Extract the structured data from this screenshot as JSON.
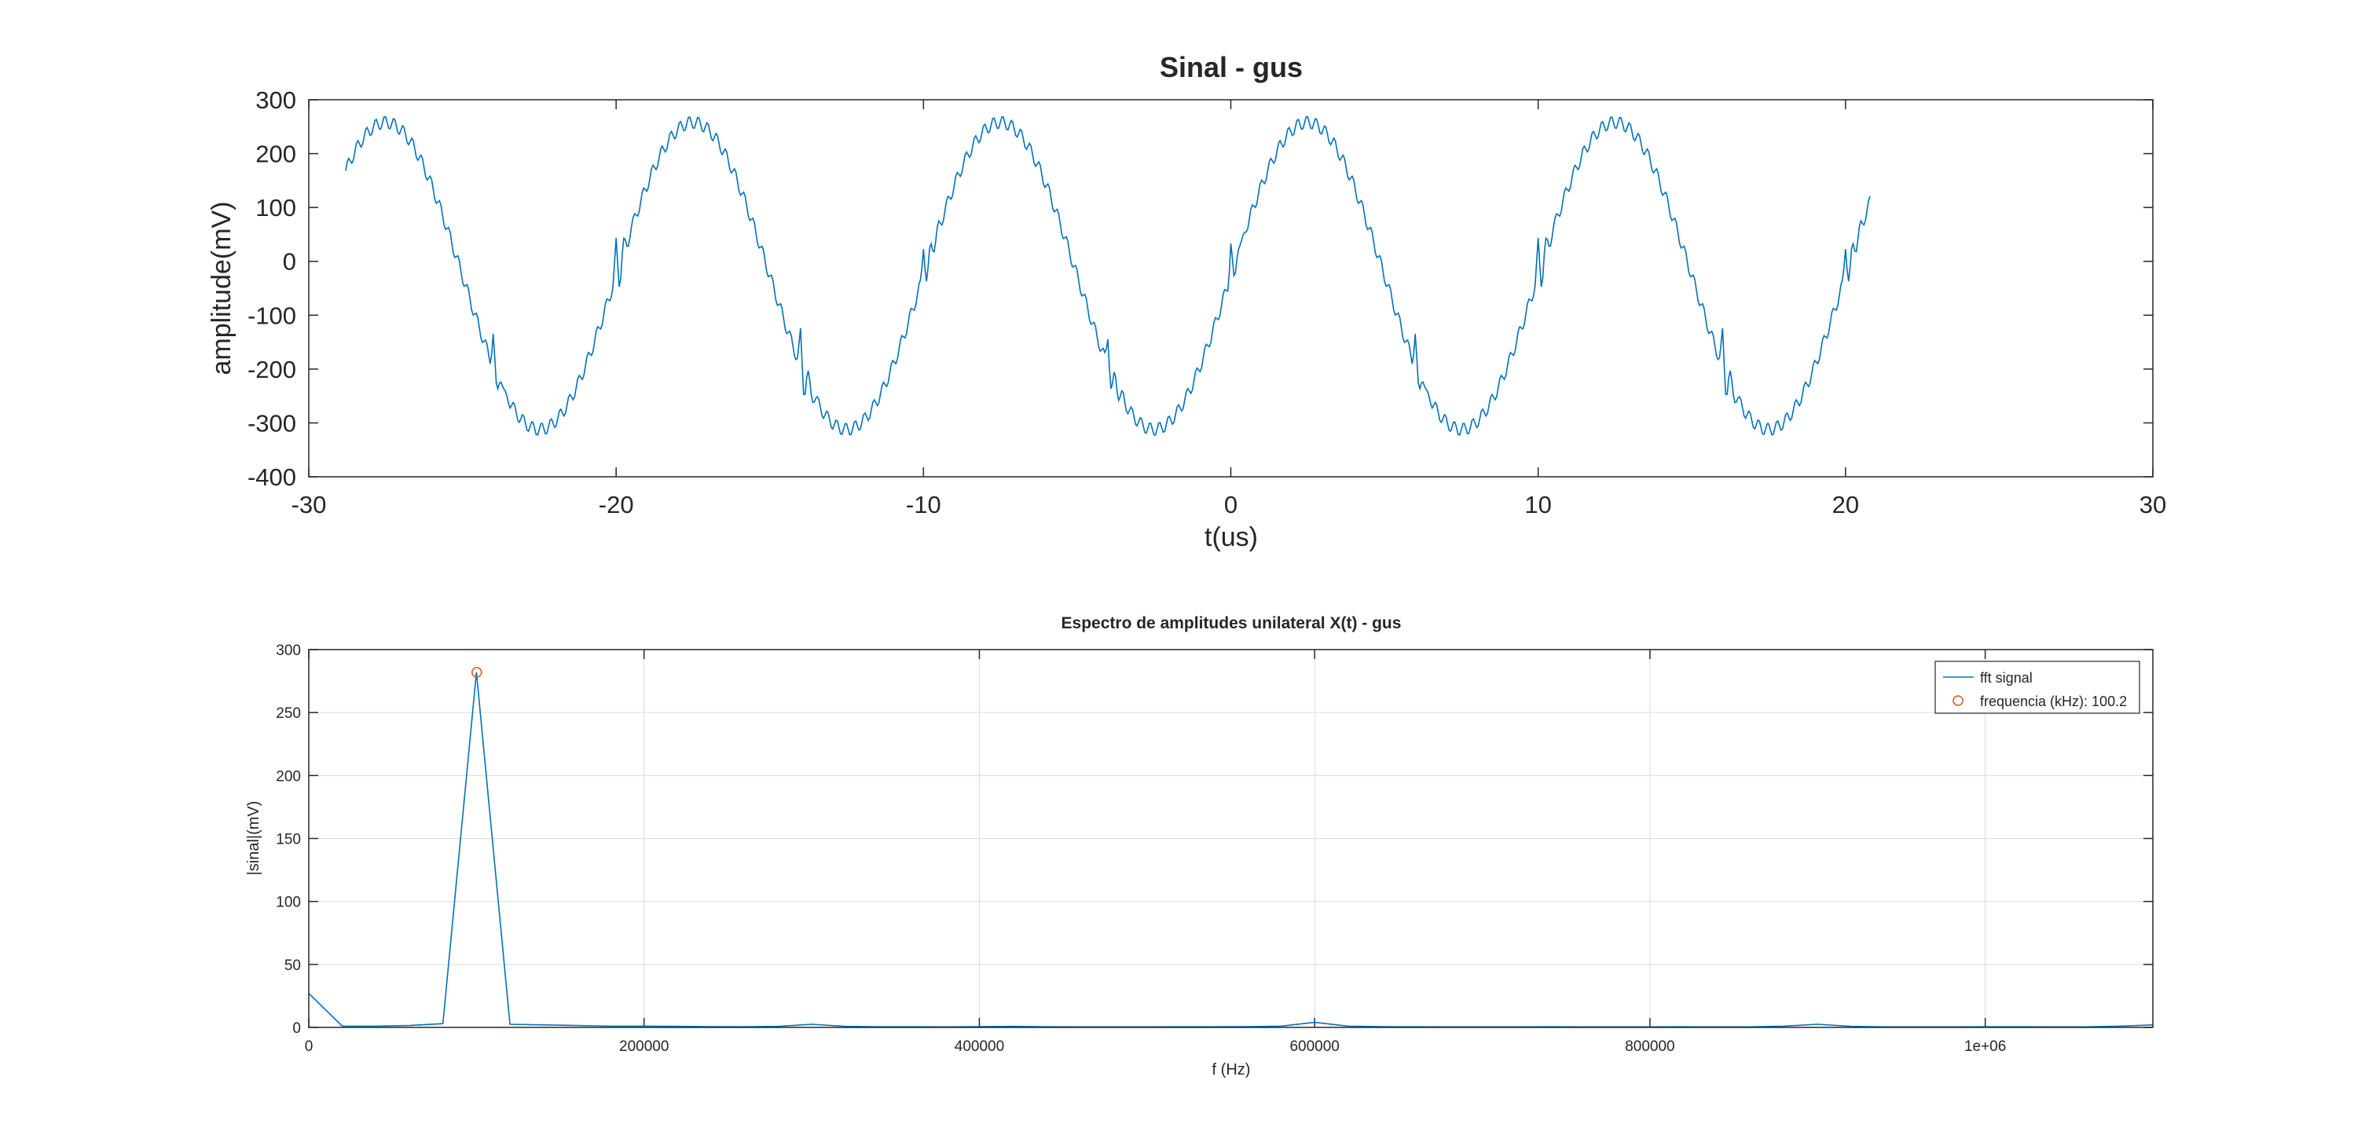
{
  "figure": {
    "background": "#ffffff"
  },
  "chart_data": [
    {
      "type": "line",
      "title": "Sinal - gus",
      "xlabel": "t(us)",
      "ylabel": "amplitude(mV)",
      "xlim": [
        -30,
        30
      ],
      "ylim": [
        -400,
        300
      ],
      "xticks": [
        -30,
        -20,
        -10,
        0,
        10,
        20,
        30
      ],
      "xtick_labels": [
        "-30",
        "-20",
        "-10",
        "0",
        "10",
        "20",
        "30"
      ],
      "yticks": [
        -400,
        -300,
        -200,
        -100,
        0,
        100,
        200,
        300
      ],
      "ytick_labels": [
        "-400",
        "-300",
        "-200",
        "-100",
        "0",
        "100",
        "200",
        "300"
      ],
      "grid": false,
      "series": [
        {
          "color": "#0072bd",
          "x_start": -28.8,
          "x_end": 20.8,
          "x_step": 0.05,
          "model": {
            "offset": -27,
            "amplitude": 285,
            "period_us": 10,
            "phase_zero_us": 0,
            "ripple_amplitude": 12,
            "ripple_period_us": 0.3,
            "spike_times_us": [
              -24,
              -20,
              -14,
              -10,
              -4,
              0,
              6,
              10,
              16,
              20
            ],
            "spike_amplitude": 60
          }
        }
      ]
    },
    {
      "type": "line",
      "title": "Espectro de amplitudes unilateral X(t) - gus",
      "xlabel": "f (Hz)",
      "ylabel": "|sinal|(mV)",
      "xlim": [
        0,
        1100000
      ],
      "ylim": [
        0,
        300
      ],
      "xticks": [
        0,
        200000,
        400000,
        600000,
        800000,
        1000000
      ],
      "xtick_labels": [
        "0",
        "200000",
        "400000",
        "600000",
        "800000",
        "1e+06"
      ],
      "yticks": [
        0,
        50,
        100,
        150,
        200,
        250,
        300
      ],
      "ytick_labels": [
        "0",
        "50",
        "100",
        "150",
        "200",
        "250",
        "300"
      ],
      "grid": true,
      "legend_position": "top-right",
      "series": [
        {
          "name": "fft signal",
          "color": "#0072bd",
          "x": [
            0,
            20000,
            40000,
            60000,
            80000,
            100000,
            120000,
            140000,
            160000,
            180000,
            200000,
            220000,
            240000,
            260000,
            280000,
            300000,
            320000,
            340000,
            360000,
            380000,
            400000,
            420000,
            440000,
            460000,
            480000,
            500000,
            520000,
            540000,
            560000,
            580000,
            600000,
            620000,
            640000,
            660000,
            680000,
            700000,
            720000,
            740000,
            760000,
            780000,
            800000,
            820000,
            840000,
            860000,
            880000,
            900000,
            920000,
            940000,
            960000,
            980000,
            1000000,
            1020000,
            1040000,
            1060000,
            1080000,
            1100000
          ],
          "y": [
            27,
            1,
            1,
            1.5,
            3,
            282,
            2.5,
            2,
            1.5,
            1,
            1,
            0.8,
            0.6,
            0.5,
            0.8,
            2.5,
            0.8,
            0.5,
            0.5,
            0.4,
            0.6,
            0.8,
            0.5,
            0.4,
            0.4,
            0.4,
            0.5,
            0.5,
            0.6,
            1,
            4,
            1,
            0.6,
            0.5,
            0.4,
            0.4,
            0.4,
            0.5,
            0.4,
            0.4,
            0.4,
            0.5,
            0.4,
            0.4,
            1,
            2.5,
            0.8,
            0.4,
            0.4,
            0.4,
            0.5,
            0.5,
            0.4,
            0.4,
            1,
            2
          ]
        },
        {
          "name": "frequencia (kHz): 100.2",
          "color": "#d95319",
          "marker": "circle",
          "x": [
            100200
          ],
          "y": [
            282
          ]
        }
      ]
    }
  ]
}
